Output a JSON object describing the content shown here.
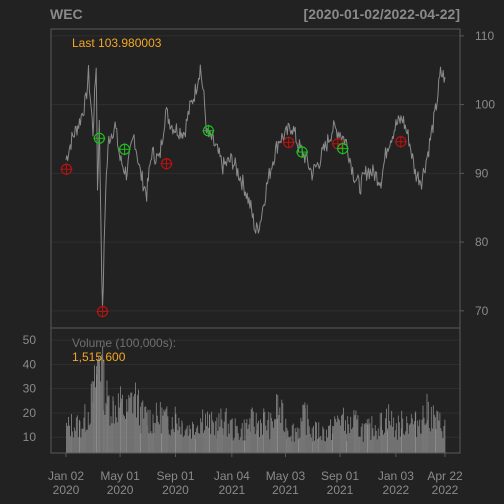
{
  "header": {
    "symbol": "WEC",
    "date_range": "[2020-01-02/2022-04-22]"
  },
  "colors": {
    "background": "#222222",
    "frame": "#595959",
    "grid": "#2f2f2f",
    "price_line": "#8a8a8a",
    "volume_bar": "#8a8a8a",
    "text": "#8a8a8a",
    "accent": "#f5a623",
    "buy_marker": "#22bb22",
    "sell_marker": "#bb1111"
  },
  "chart_data": [
    {
      "type": "line",
      "title": "WEC",
      "subtitle": "[2020-01-02/2022-04-22]",
      "last_label": "Last 103.980003",
      "y_ticks": [
        70,
        80,
        90,
        100,
        110
      ],
      "y_range": [
        67.5,
        111
      ],
      "x_ticks": [
        {
          "date": "2020-01-02",
          "line1": "Jan 02",
          "line2": "2020"
        },
        {
          "date": "2020-05-01",
          "line1": "May 01",
          "line2": "2020"
        },
        {
          "date": "2020-09-01",
          "line1": "Sep 01",
          "line2": "2020"
        },
        {
          "date": "2021-01-04",
          "line1": "Jan 04",
          "line2": "2021"
        },
        {
          "date": "2021-05-03",
          "line1": "May 03",
          "line2": "2021"
        },
        {
          "date": "2021-09-01",
          "line1": "Sep 01",
          "line2": "2021"
        },
        {
          "date": "2022-01-03",
          "line1": "Jan 03",
          "line2": "2022"
        },
        {
          "date": "2022-04-22",
          "line1": "Apr 22",
          "line2": "2022"
        }
      ],
      "x_range": [
        "2020-01-02",
        "2022-04-22"
      ],
      "grid": true,
      "price_series": {
        "name": "WEC close",
        "points": [
          [
            "2020-01-02",
            92.0
          ],
          [
            "2020-01-15",
            95.0
          ],
          [
            "2020-02-01",
            97.5
          ],
          [
            "2020-02-15",
            100.5
          ],
          [
            "2020-02-21",
            104.5
          ],
          [
            "2020-03-02",
            96.0
          ],
          [
            "2020-03-09",
            106.0
          ],
          [
            "2020-03-12",
            88.0
          ],
          [
            "2020-03-16",
            97.0
          ],
          [
            "2020-03-23",
            69.5
          ],
          [
            "2020-03-30",
            88.0
          ],
          [
            "2020-04-06",
            95.0
          ],
          [
            "2020-04-20",
            97.0
          ],
          [
            "2020-05-01",
            92.0
          ],
          [
            "2020-05-15",
            90.0
          ],
          [
            "2020-06-01",
            95.5
          ],
          [
            "2020-06-15",
            90.0
          ],
          [
            "2020-06-29",
            87.0
          ],
          [
            "2020-07-10",
            93.0
          ],
          [
            "2020-07-27",
            92.0
          ],
          [
            "2020-08-10",
            99.0
          ],
          [
            "2020-08-24",
            97.0
          ],
          [
            "2020-09-01",
            96.5
          ],
          [
            "2020-09-21",
            96.0
          ],
          [
            "2020-10-01",
            99.0
          ],
          [
            "2020-10-15",
            102.0
          ],
          [
            "2020-10-26",
            105.5
          ],
          [
            "2020-11-03",
            101.0
          ],
          [
            "2020-11-10",
            95.5
          ],
          [
            "2020-11-20",
            95.0
          ],
          [
            "2020-12-01",
            93.5
          ],
          [
            "2020-12-15",
            91.0
          ],
          [
            "2021-01-04",
            92.0
          ],
          [
            "2021-01-19",
            90.0
          ],
          [
            "2021-02-01",
            88.0
          ],
          [
            "2021-02-15",
            85.0
          ],
          [
            "2021-02-26",
            81.5
          ],
          [
            "2021-03-08",
            83.0
          ],
          [
            "2021-03-22",
            88.0
          ],
          [
            "2021-04-05",
            92.0
          ],
          [
            "2021-04-19",
            95.0
          ],
          [
            "2021-05-03",
            95.5
          ],
          [
            "2021-05-17",
            97.0
          ],
          [
            "2021-06-01",
            94.0
          ],
          [
            "2021-06-15",
            92.5
          ],
          [
            "2021-07-01",
            90.0
          ],
          [
            "2021-07-15",
            91.5
          ],
          [
            "2021-08-01",
            94.0
          ],
          [
            "2021-08-16",
            96.5
          ],
          [
            "2021-09-01",
            96.0
          ],
          [
            "2021-09-15",
            94.5
          ],
          [
            "2021-10-01",
            90.0
          ],
          [
            "2021-10-15",
            88.0
          ],
          [
            "2021-11-01",
            90.5
          ],
          [
            "2021-11-15",
            90.0
          ],
          [
            "2021-12-01",
            89.0
          ],
          [
            "2021-12-15",
            94.0
          ],
          [
            "2022-01-03",
            97.0
          ],
          [
            "2022-01-18",
            98.0
          ],
          [
            "2022-02-01",
            95.0
          ],
          [
            "2022-02-15",
            90.0
          ],
          [
            "2022-03-01",
            89.0
          ],
          [
            "2022-03-15",
            93.0
          ],
          [
            "2022-04-01",
            99.0
          ],
          [
            "2022-04-12",
            104.5
          ],
          [
            "2022-04-22",
            104.0
          ]
        ]
      },
      "markers": [
        {
          "date": "2020-01-03",
          "price": 90.6,
          "kind": "sell"
        },
        {
          "date": "2020-03-16",
          "price": 95.1,
          "kind": "buy"
        },
        {
          "date": "2020-03-23",
          "price": 69.9,
          "kind": "sell"
        },
        {
          "date": "2020-05-11",
          "price": 93.5,
          "kind": "buy"
        },
        {
          "date": "2020-08-12",
          "price": 91.4,
          "kind": "sell"
        },
        {
          "date": "2020-11-13",
          "price": 96.2,
          "kind": "buy"
        },
        {
          "date": "2021-05-10",
          "price": 94.5,
          "kind": "sell"
        },
        {
          "date": "2021-06-09",
          "price": 93.1,
          "kind": "buy"
        },
        {
          "date": "2021-08-27",
          "price": 94.3,
          "kind": "sell"
        },
        {
          "date": "2021-09-07",
          "price": 93.6,
          "kind": "buy"
        },
        {
          "date": "2022-01-14",
          "price": 94.6,
          "kind": "sell"
        }
      ]
    },
    {
      "type": "bar",
      "title": "Volume (100,000s):",
      "value_label": "1,515,600",
      "y_ticks": [
        10,
        20,
        30,
        40,
        50
      ],
      "y_range": [
        3.5,
        55
      ],
      "volume_series": {
        "name": "Volume (100,000s)",
        "points": [
          [
            "2020-01-02",
            15
          ],
          [
            "2020-01-15",
            17
          ],
          [
            "2020-02-01",
            16
          ],
          [
            "2020-02-15",
            20
          ],
          [
            "2020-03-02",
            30
          ],
          [
            "2020-03-09",
            40
          ],
          [
            "2020-03-16",
            52
          ],
          [
            "2020-03-23",
            38
          ],
          [
            "2020-04-01",
            28
          ],
          [
            "2020-04-15",
            25
          ],
          [
            "2020-05-01",
            26
          ],
          [
            "2020-05-15",
            22
          ],
          [
            "2020-06-01",
            31
          ],
          [
            "2020-06-15",
            21
          ],
          [
            "2020-07-01",
            20
          ],
          [
            "2020-07-15",
            19
          ],
          [
            "2020-08-01",
            21
          ],
          [
            "2020-08-15",
            18
          ],
          [
            "2020-09-01",
            21
          ],
          [
            "2020-09-15",
            17
          ],
          [
            "2020-10-01",
            15
          ],
          [
            "2020-10-15",
            16
          ],
          [
            "2020-11-01",
            21
          ],
          [
            "2020-11-15",
            17
          ],
          [
            "2020-12-01",
            16
          ],
          [
            "2020-12-15",
            19
          ],
          [
            "2021-01-04",
            15
          ],
          [
            "2021-01-15",
            14
          ],
          [
            "2021-02-01",
            15
          ],
          [
            "2021-02-15",
            18
          ],
          [
            "2021-03-01",
            17
          ],
          [
            "2021-03-15",
            19
          ],
          [
            "2021-04-01",
            16
          ],
          [
            "2021-04-15",
            25
          ],
          [
            "2021-05-03",
            16
          ],
          [
            "2021-05-17",
            14
          ],
          [
            "2021-06-01",
            15
          ],
          [
            "2021-06-15",
            21
          ],
          [
            "2021-07-01",
            13
          ],
          [
            "2021-07-15",
            14
          ],
          [
            "2021-08-01",
            13
          ],
          [
            "2021-08-15",
            15
          ],
          [
            "2021-09-01",
            21
          ],
          [
            "2021-09-15",
            15
          ],
          [
            "2021-10-01",
            18
          ],
          [
            "2021-10-15",
            15
          ],
          [
            "2021-11-01",
            14
          ],
          [
            "2021-11-15",
            16
          ],
          [
            "2021-12-01",
            17
          ],
          [
            "2021-12-15",
            21
          ],
          [
            "2022-01-03",
            15
          ],
          [
            "2022-01-15",
            17
          ],
          [
            "2022-02-01",
            19
          ],
          [
            "2022-02-15",
            17
          ],
          [
            "2022-03-01",
            20
          ],
          [
            "2022-03-15",
            23
          ],
          [
            "2022-04-01",
            18
          ],
          [
            "2022-04-22",
            16
          ]
        ]
      }
    }
  ]
}
